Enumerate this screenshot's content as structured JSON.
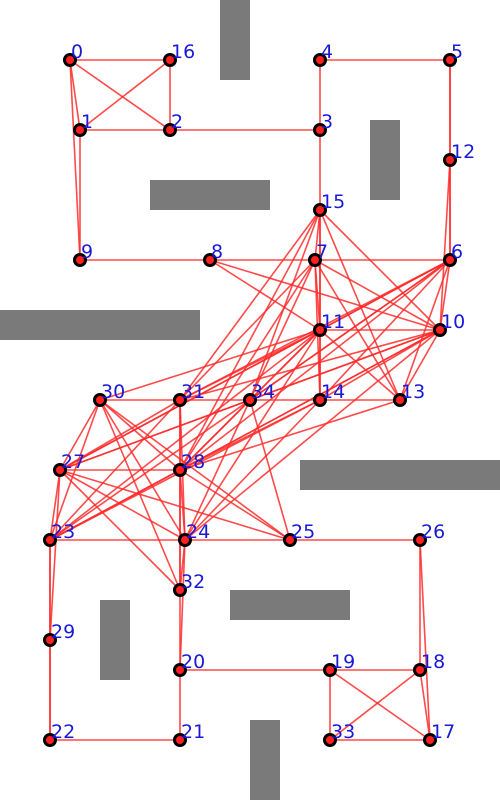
{
  "colors": {
    "edge": "#ff2a2a",
    "node_ring": "#000000",
    "node_core": "#ff2020",
    "label": "#1a1ad6",
    "obstacle": "#7a7a7a",
    "background": "#ffffff"
  },
  "nodes": [
    {
      "id": "0"
    },
    {
      "id": "1"
    },
    {
      "id": "2"
    },
    {
      "id": "3"
    },
    {
      "id": "4"
    },
    {
      "id": "5"
    },
    {
      "id": "6"
    },
    {
      "id": "7"
    },
    {
      "id": "8"
    },
    {
      "id": "9"
    },
    {
      "id": "10"
    },
    {
      "id": "11"
    },
    {
      "id": "12"
    },
    {
      "id": "13"
    },
    {
      "id": "14"
    },
    {
      "id": "15"
    },
    {
      "id": "16"
    },
    {
      "id": "17"
    },
    {
      "id": "18"
    },
    {
      "id": "19"
    },
    {
      "id": "20"
    },
    {
      "id": "21"
    },
    {
      "id": "22"
    },
    {
      "id": "23"
    },
    {
      "id": "24"
    },
    {
      "id": "25"
    },
    {
      "id": "26"
    },
    {
      "id": "27"
    },
    {
      "id": "28"
    },
    {
      "id": "29"
    },
    {
      "id": "30"
    },
    {
      "id": "31"
    },
    {
      "id": "32"
    },
    {
      "id": "33"
    },
    {
      "id": "34"
    }
  ],
  "edges": [
    [
      "0",
      "16"
    ],
    [
      "0",
      "1"
    ],
    [
      "0",
      "2"
    ],
    [
      "0",
      "9"
    ],
    [
      "16",
      "1"
    ],
    [
      "16",
      "2"
    ],
    [
      "1",
      "2"
    ],
    [
      "1",
      "9"
    ],
    [
      "2",
      "3"
    ],
    [
      "3",
      "4"
    ],
    [
      "4",
      "5"
    ],
    [
      "3",
      "15"
    ],
    [
      "5",
      "12"
    ],
    [
      "5",
      "6"
    ],
    [
      "12",
      "6"
    ],
    [
      "12",
      "10"
    ],
    [
      "15",
      "7"
    ],
    [
      "15",
      "11"
    ],
    [
      "15",
      "10"
    ],
    [
      "15",
      "13"
    ],
    [
      "15",
      "14"
    ],
    [
      "15",
      "28"
    ],
    [
      "15",
      "31"
    ],
    [
      "15",
      "34"
    ],
    [
      "9",
      "8"
    ],
    [
      "8",
      "7"
    ],
    [
      "7",
      "6"
    ],
    [
      "8",
      "11"
    ],
    [
      "8",
      "10"
    ],
    [
      "7",
      "11"
    ],
    [
      "7",
      "10"
    ],
    [
      "7",
      "13"
    ],
    [
      "7",
      "14"
    ],
    [
      "7",
      "34"
    ],
    [
      "7",
      "31"
    ],
    [
      "7",
      "28"
    ],
    [
      "6",
      "11"
    ],
    [
      "6",
      "10"
    ],
    [
      "6",
      "13"
    ],
    [
      "6",
      "14"
    ],
    [
      "6",
      "34"
    ],
    [
      "6",
      "31"
    ],
    [
      "6",
      "28"
    ],
    [
      "6",
      "27"
    ],
    [
      "6",
      "23"
    ],
    [
      "11",
      "10"
    ],
    [
      "11",
      "13"
    ],
    [
      "11",
      "14"
    ],
    [
      "11",
      "34"
    ],
    [
      "11",
      "31"
    ],
    [
      "11",
      "28"
    ],
    [
      "11",
      "27"
    ],
    [
      "11",
      "23"
    ],
    [
      "11",
      "24"
    ],
    [
      "11",
      "30"
    ],
    [
      "10",
      "13"
    ],
    [
      "10",
      "14"
    ],
    [
      "10",
      "34"
    ],
    [
      "10",
      "31"
    ],
    [
      "10",
      "28"
    ],
    [
      "10",
      "27"
    ],
    [
      "10",
      "23"
    ],
    [
      "10",
      "24"
    ],
    [
      "30",
      "31"
    ],
    [
      "31",
      "34"
    ],
    [
      "34",
      "14"
    ],
    [
      "14",
      "13"
    ],
    [
      "30",
      "27"
    ],
    [
      "30",
      "23"
    ],
    [
      "30",
      "28"
    ],
    [
      "30",
      "24"
    ],
    [
      "30",
      "32"
    ],
    [
      "30",
      "25"
    ],
    [
      "31",
      "28"
    ],
    [
      "31",
      "24"
    ],
    [
      "31",
      "27"
    ],
    [
      "31",
      "23"
    ],
    [
      "31",
      "32"
    ],
    [
      "34",
      "28"
    ],
    [
      "34",
      "24"
    ],
    [
      "34",
      "27"
    ],
    [
      "34",
      "25"
    ],
    [
      "14",
      "28"
    ],
    [
      "14",
      "24"
    ],
    [
      "14",
      "23"
    ],
    [
      "13",
      "28"
    ],
    [
      "27",
      "28"
    ],
    [
      "27",
      "23"
    ],
    [
      "27",
      "24"
    ],
    [
      "27",
      "25"
    ],
    [
      "27",
      "29"
    ],
    [
      "27",
      "32"
    ],
    [
      "28",
      "24"
    ],
    [
      "28",
      "23"
    ],
    [
      "28",
      "25"
    ],
    [
      "28",
      "32"
    ],
    [
      "23",
      "24"
    ],
    [
      "23",
      "29"
    ],
    [
      "23",
      "22"
    ],
    [
      "29",
      "22"
    ],
    [
      "24",
      "25"
    ],
    [
      "24",
      "32"
    ],
    [
      "25",
      "26"
    ],
    [
      "26",
      "18"
    ],
    [
      "26",
      "17"
    ],
    [
      "32",
      "20"
    ],
    [
      "24",
      "20"
    ],
    [
      "20",
      "21"
    ],
    [
      "21",
      "22"
    ],
    [
      "20",
      "19"
    ],
    [
      "19",
      "18"
    ],
    [
      "19",
      "33"
    ],
    [
      "19",
      "17"
    ],
    [
      "18",
      "33"
    ],
    [
      "18",
      "17"
    ],
    [
      "33",
      "17"
    ]
  ]
}
